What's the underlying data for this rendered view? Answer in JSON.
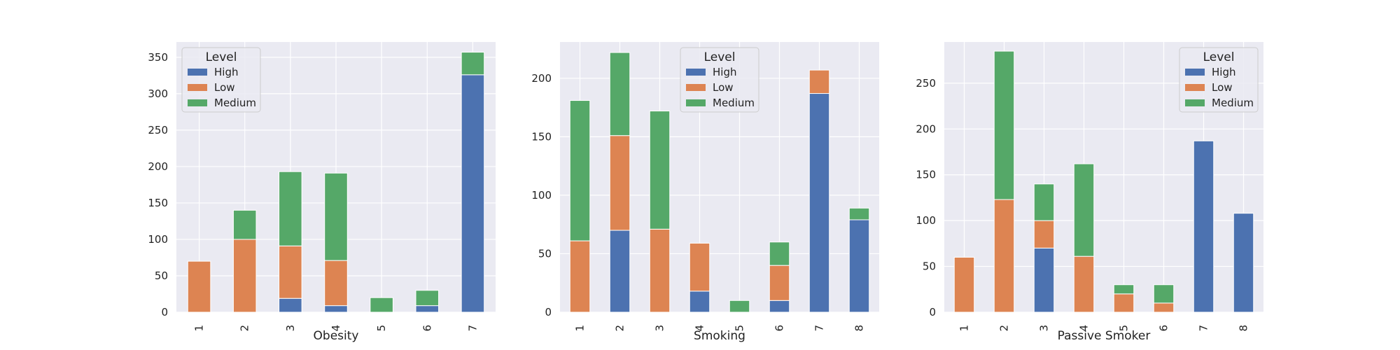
{
  "colors": {
    "High": "#4c72b0",
    "Low": "#dd8452",
    "Medium": "#55a868",
    "background": "#eaeaf2",
    "grid": "#ffffff"
  },
  "chart_data": [
    {
      "type": "bar",
      "stacked": true,
      "xlabel": "Obesity",
      "categories": [
        "1",
        "2",
        "3",
        "4",
        "5",
        "6",
        "7"
      ],
      "series": [
        {
          "name": "High",
          "values": [
            0,
            0,
            19,
            9,
            0,
            9,
            326
          ]
        },
        {
          "name": "Low",
          "values": [
            70,
            100,
            72,
            62,
            0,
            0,
            0
          ]
        },
        {
          "name": "Medium",
          "values": [
            0,
            40,
            102,
            120,
            20,
            21,
            31
          ]
        }
      ],
      "ylim": [
        0,
        371
      ],
      "yticks": [
        0,
        50,
        100,
        150,
        200,
        250,
        300,
        350
      ],
      "legend": {
        "title": "Level",
        "position": "top-left"
      },
      "grid": true
    },
    {
      "type": "bar",
      "stacked": true,
      "xlabel": "Smoking",
      "categories": [
        "1",
        "2",
        "3",
        "4",
        "5",
        "6",
        "7",
        "8"
      ],
      "series": [
        {
          "name": "High",
          "values": [
            0,
            70,
            0,
            18,
            0,
            10,
            187,
            79
          ]
        },
        {
          "name": "Low",
          "values": [
            61,
            81,
            71,
            41,
            0,
            30,
            20,
            0
          ]
        },
        {
          "name": "Medium",
          "values": [
            120,
            71,
            101,
            0,
            10,
            20,
            0,
            10
          ]
        }
      ],
      "ylim": [
        0,
        231
      ],
      "yticks": [
        0,
        50,
        100,
        150,
        200
      ],
      "legend": {
        "title": "Level",
        "position": "top-center"
      },
      "grid": true
    },
    {
      "type": "bar",
      "stacked": true,
      "xlabel": "Passive Smoker",
      "categories": [
        "1",
        "2",
        "3",
        "4",
        "5",
        "6",
        "7",
        "8"
      ],
      "series": [
        {
          "name": "High",
          "values": [
            0,
            0,
            70,
            0,
            0,
            0,
            187,
            108
          ]
        },
        {
          "name": "Low",
          "values": [
            60,
            123,
            30,
            61,
            20,
            10,
            0,
            0
          ]
        },
        {
          "name": "Medium",
          "values": [
            0,
            162,
            40,
            101,
            10,
            20,
            0,
            0
          ]
        }
      ],
      "ylim": [
        0,
        295
      ],
      "yticks": [
        0,
        50,
        100,
        150,
        200,
        250
      ],
      "legend": {
        "title": "Level",
        "position": "top-right"
      },
      "grid": true
    }
  ]
}
